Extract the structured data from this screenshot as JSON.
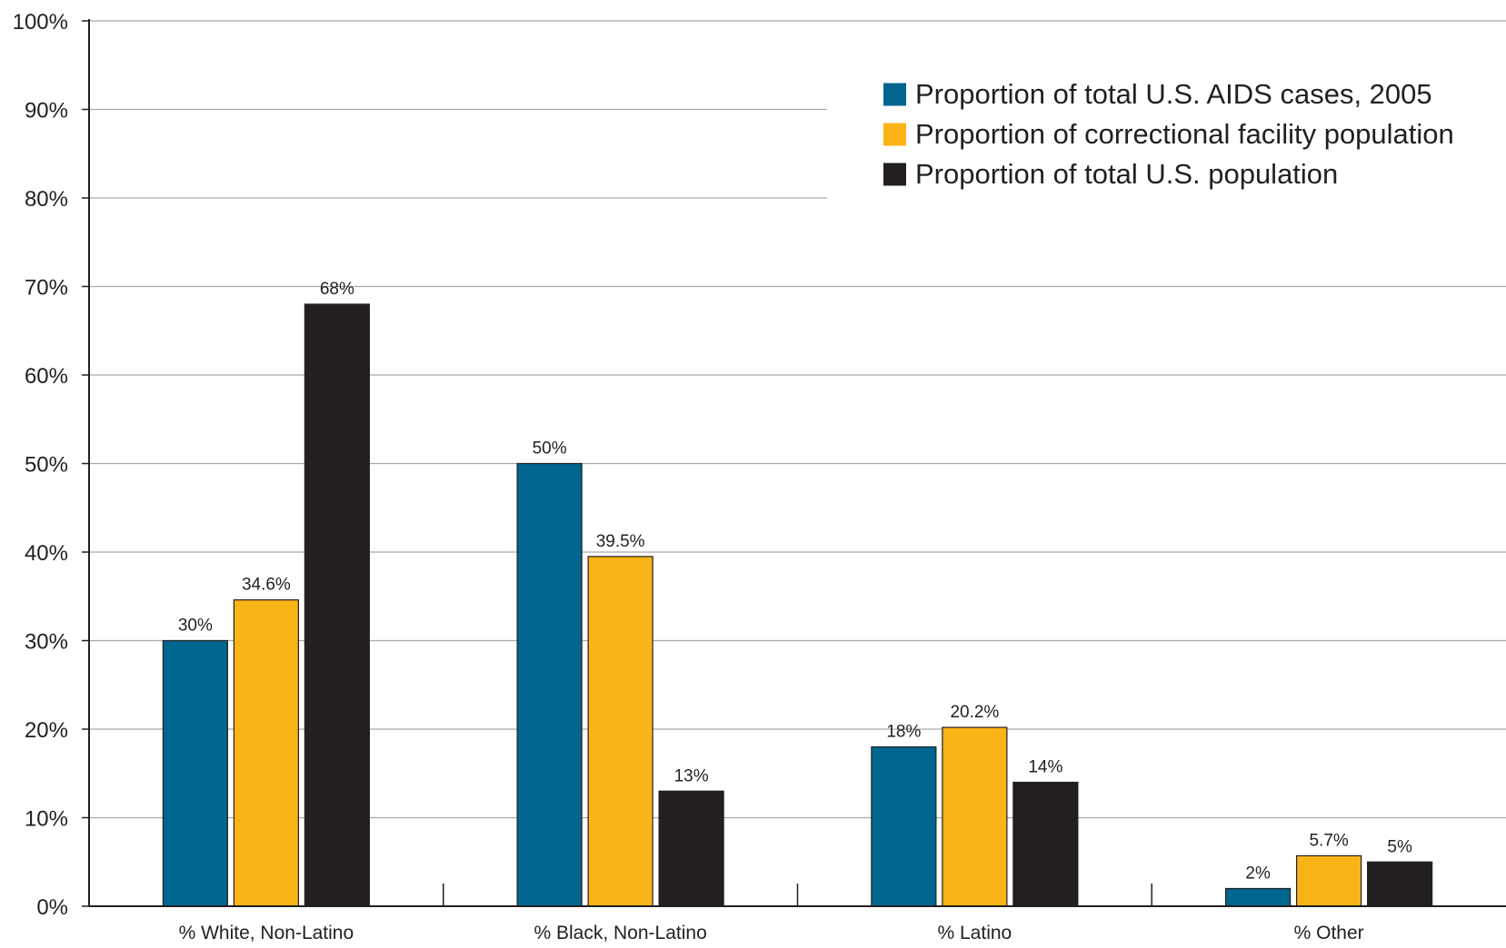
{
  "chart_data": {
    "type": "bar",
    "categories": [
      "% White, Non-Latino",
      "% Black, Non-Latino",
      "% Latino",
      "% Other"
    ],
    "series": [
      {
        "name": "Proportion of total U.S. AIDS cases, 2005",
        "color": "#00668f",
        "values": [
          30,
          50,
          18,
          2
        ],
        "labels": [
          "30%",
          "50%",
          "18%",
          "2%"
        ]
      },
      {
        "name": "Proportion of correctional facility population",
        "color": "#fbb417",
        "values": [
          34.6,
          39.5,
          20.2,
          5.7
        ],
        "labels": [
          "34.6%",
          "39.5%",
          "20.2%",
          "5.7%"
        ]
      },
      {
        "name": "Proportion of total U.S. population",
        "color": "#231f20",
        "values": [
          68,
          13,
          14,
          5
        ],
        "labels": [
          "68%",
          "13%",
          "14%",
          "5%"
        ]
      }
    ],
    "ylim": [
      0,
      100
    ],
    "yticks": [
      0,
      10,
      20,
      30,
      40,
      50,
      60,
      70,
      80,
      90,
      100
    ],
    "ytick_labels": [
      "0%",
      "10%",
      "20%",
      "30%",
      "40%",
      "50%",
      "60%",
      "70%",
      "80%",
      "90%",
      "100%"
    ],
    "grid": true,
    "legend_position": "top-right",
    "title": "",
    "xlabel": "",
    "ylabel": ""
  }
}
